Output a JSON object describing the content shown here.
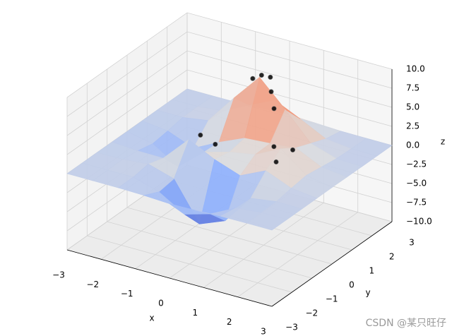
{
  "chart_data": {
    "type": "surface",
    "colormap": "coolwarm",
    "x": [
      -3,
      -2.25,
      -1.5,
      -0.75,
      0,
      0.75,
      1.5,
      2.25,
      3
    ],
    "y": [
      -3,
      -2.25,
      -1.5,
      -0.75,
      0,
      0.75,
      1.5,
      2.25,
      3
    ],
    "z": [
      [
        0.0,
        0.0,
        0.0,
        -0.07,
        -0.24,
        -0.17,
        -0.03,
        0.0,
        0.0
      ],
      [
        0.0,
        0.01,
        0.01,
        -0.99,
        -3.02,
        -2.05,
        -0.35,
        -0.01,
        0.0
      ],
      [
        0.0,
        0.03,
        0.33,
        -0.68,
        -5.68,
        -4.32,
        -0.44,
        0.05,
        0.0
      ],
      [
        -0.02,
        -0.25,
        -0.28,
        3.09,
        1.4,
        0.2,
        1.78,
        0.41,
        0.02
      ],
      [
        -0.04,
        -0.69,
        -2.77,
        0.06,
        0.98,
        1.57,
        3.27,
        0.7,
        0.03
      ],
      [
        -0.02,
        -0.42,
        -1.76,
        -0.05,
        1.42,
        1.65,
        1.99,
        0.41,
        0.02
      ],
      [
        0.0,
        -0.03,
        0.48,
        4.37,
        8.0,
        4.72,
        1.19,
        0.12,
        0.0
      ],
      [
        0.0,
        0.02,
        0.36,
        2.07,
        3.65,
        2.09,
        0.41,
        0.03,
        0.0
      ],
      [
        0.0,
        0.0,
        0.03,
        0.17,
        0.3,
        0.17,
        0.03,
        0.0,
        0.0
      ]
    ],
    "scatter": {
      "color": "#000000",
      "x": [
        0,
        -0.2,
        0.2,
        0.4,
        0.6,
        -0.5,
        -0.3,
        1.3,
        1.6,
        1.5
      ],
      "y": [
        1.6,
        1.5,
        1.7,
        1.4,
        1.2,
        -0.6,
        -0.2,
        0.0,
        -0.4,
        0.6
      ],
      "z": [
        8.1,
        7.6,
        7.9,
        6.8,
        5.2,
        3.7,
        2.0,
        3.3,
        2.4,
        2.0
      ]
    },
    "xlim": [
      -3,
      3
    ],
    "ylim": [
      -3,
      3
    ],
    "zlim": [
      -10,
      10
    ],
    "xticks": [
      {
        "value": -3,
        "label": "−3"
      },
      {
        "value": -2,
        "label": "−2"
      },
      {
        "value": -1,
        "label": "−1"
      },
      0,
      1,
      2,
      3
    ],
    "yticks": [
      {
        "value": -3,
        "label": "−3"
      },
      {
        "value": -2,
        "label": "−2"
      },
      {
        "value": -1,
        "label": "−1"
      },
      0,
      1,
      2,
      3
    ],
    "zticks": [
      {
        "value": -10,
        "label": "−10.0"
      },
      {
        "value": -7.5,
        "label": "−7.5"
      },
      {
        "value": -5,
        "label": "−5.0"
      },
      {
        "value": -2.5,
        "label": "−2.5"
      },
      {
        "value": 0,
        "label": "0.0"
      },
      {
        "value": 2.5,
        "label": "2.5"
      },
      {
        "value": 5,
        "label": "5.0"
      },
      {
        "value": 7.5,
        "label": "7.5"
      },
      {
        "value": 10,
        "label": "10.0"
      }
    ],
    "xlabel": "x",
    "ylabel": "y",
    "zlabel": "z",
    "grid": true
  },
  "watermark": "CSDN @某只旺仔"
}
